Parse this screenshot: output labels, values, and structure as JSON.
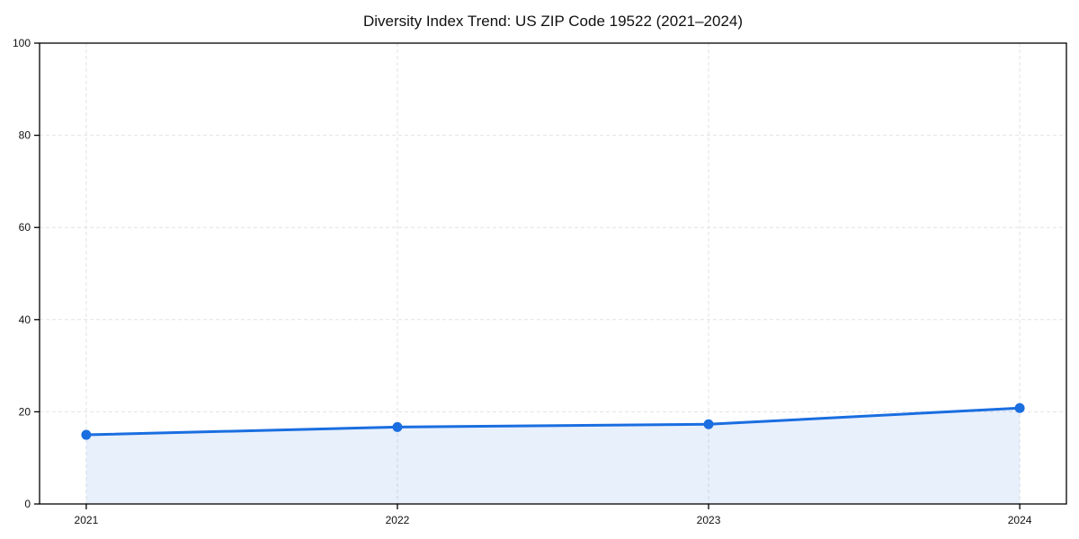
{
  "chart_data": {
    "type": "area",
    "title": "Diversity Index Trend: US ZIP Code 19522 (2021–2024)",
    "categories": [
      "2021",
      "2022",
      "2023",
      "2024"
    ],
    "x": [
      2021,
      2022,
      2023,
      2024
    ],
    "series": [
      {
        "name": "Diversity Index",
        "values": [
          15.0,
          16.7,
          17.3,
          20.8
        ]
      }
    ],
    "xlabel": "",
    "ylabel": "",
    "ylim": [
      0,
      100
    ],
    "yticks": [
      0,
      20,
      40,
      60,
      80,
      100
    ],
    "grid": true,
    "grid_style": "dashed",
    "legend_position": "none",
    "x_margin_fraction": 0.05,
    "colors": {
      "line": "#1a6ee0",
      "marker": "#1a6ee0",
      "fill": "rgba(26,110,224,0.10)",
      "grid": "#e2e2e2",
      "axis": "#000000",
      "background": "#ffffff"
    }
  }
}
